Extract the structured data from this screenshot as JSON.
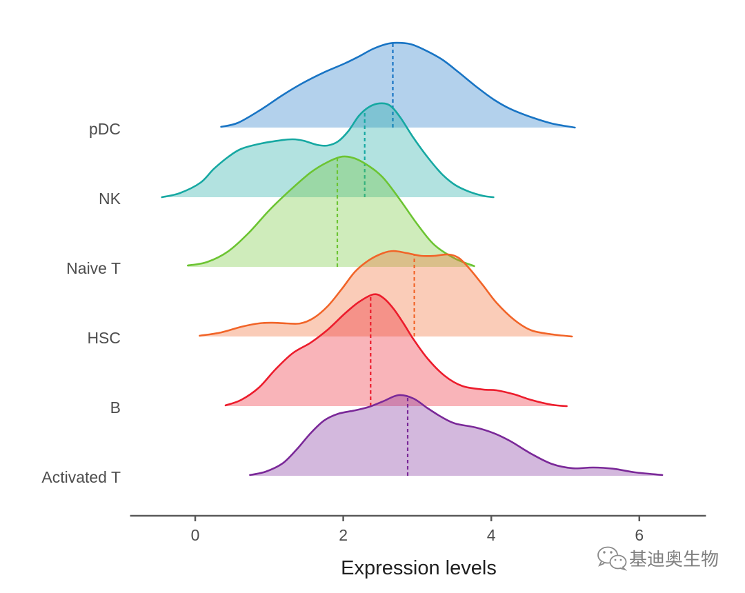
{
  "chart_data": {
    "type": "area",
    "variant": "ridgeline",
    "title": "",
    "xlabel": "Expression levels",
    "ylabel": "",
    "xlim": [
      -0.88,
      6.9
    ],
    "xticks": [
      0,
      2,
      4,
      6
    ],
    "grid": false,
    "legend": "none",
    "categories": [
      "pDC",
      "NK",
      "Naive T",
      "HSC",
      "B",
      "Activated T"
    ],
    "series": [
      {
        "name": "pDC",
        "color": "#1874c4",
        "median": 2.67,
        "x": [
          0.35,
          0.58,
          0.9,
          1.18,
          1.46,
          1.74,
          2.02,
          2.21,
          2.4,
          2.58,
          2.72,
          2.91,
          3.09,
          3.33,
          3.56,
          3.79,
          4.03,
          4.26,
          4.54,
          4.82,
          5.13
        ],
        "density": [
          0.004,
          0.025,
          0.096,
          0.168,
          0.232,
          0.286,
          0.332,
          0.368,
          0.407,
          0.432,
          0.439,
          0.432,
          0.404,
          0.354,
          0.286,
          0.214,
          0.146,
          0.096,
          0.054,
          0.021,
          0.0
        ]
      },
      {
        "name": "NK",
        "color": "#16a8a2",
        "median": 2.29,
        "x": [
          -0.45,
          -0.21,
          0.07,
          0.25,
          0.44,
          0.62,
          0.9,
          1.18,
          1.32,
          1.46,
          1.65,
          1.79,
          1.93,
          2.07,
          2.21,
          2.35,
          2.49,
          2.63,
          2.77,
          2.95,
          3.14,
          3.33,
          3.51,
          3.7,
          3.89,
          4.03
        ],
        "density": [
          0.0,
          0.021,
          0.075,
          0.146,
          0.207,
          0.25,
          0.279,
          0.296,
          0.3,
          0.293,
          0.271,
          0.268,
          0.289,
          0.343,
          0.421,
          0.468,
          0.486,
          0.475,
          0.414,
          0.307,
          0.207,
          0.121,
          0.064,
          0.029,
          0.007,
          0.0
        ]
      },
      {
        "name": "Naive T",
        "color": "#6cc432",
        "median": 1.92,
        "x": [
          -0.1,
          0.16,
          0.44,
          0.72,
          1.0,
          1.28,
          1.56,
          1.79,
          1.99,
          2.16,
          2.35,
          2.54,
          2.77,
          3.0,
          3.23,
          3.51,
          3.77
        ],
        "density": [
          0.007,
          0.025,
          0.079,
          0.175,
          0.293,
          0.396,
          0.489,
          0.543,
          0.571,
          0.561,
          0.521,
          0.461,
          0.346,
          0.221,
          0.114,
          0.043,
          0.004
        ]
      },
      {
        "name": "HSC",
        "color": "#f16428",
        "median": 2.96,
        "x": [
          0.06,
          0.35,
          0.62,
          0.86,
          1.04,
          1.23,
          1.42,
          1.6,
          1.79,
          1.98,
          2.16,
          2.35,
          2.54,
          2.68,
          2.86,
          3.05,
          3.23,
          3.42,
          3.56,
          3.7,
          3.89,
          4.07,
          4.31,
          4.54,
          4.82,
          5.09
        ],
        "density": [
          0.004,
          0.021,
          0.05,
          0.068,
          0.071,
          0.068,
          0.068,
          0.096,
          0.157,
          0.246,
          0.336,
          0.396,
          0.432,
          0.443,
          0.432,
          0.418,
          0.418,
          0.425,
          0.407,
          0.354,
          0.264,
          0.175,
          0.086,
          0.032,
          0.011,
          0.0
        ]
      },
      {
        "name": "B",
        "color": "#ec1c2c",
        "median": 2.37,
        "x": [
          0.41,
          0.62,
          0.86,
          1.09,
          1.32,
          1.56,
          1.79,
          2.02,
          2.21,
          2.41,
          2.54,
          2.68,
          2.82,
          2.95,
          3.14,
          3.37,
          3.61,
          3.89,
          4.07,
          4.31,
          4.54,
          4.82,
          5.02
        ],
        "density": [
          0.004,
          0.032,
          0.096,
          0.193,
          0.275,
          0.329,
          0.396,
          0.479,
          0.539,
          0.579,
          0.561,
          0.504,
          0.425,
          0.346,
          0.246,
          0.157,
          0.104,
          0.086,
          0.082,
          0.061,
          0.032,
          0.007,
          0.0
        ]
      },
      {
        "name": "Activated T",
        "color": "#7a2898",
        "median": 2.87,
        "x": [
          0.74,
          0.95,
          1.18,
          1.37,
          1.56,
          1.74,
          1.93,
          2.16,
          2.35,
          2.54,
          2.75,
          2.95,
          3.14,
          3.33,
          3.51,
          3.79,
          4.03,
          4.26,
          4.54,
          4.82,
          5.1,
          5.38,
          5.66,
          5.94,
          6.31
        ],
        "density": [
          0.004,
          0.021,
          0.064,
          0.136,
          0.221,
          0.286,
          0.321,
          0.339,
          0.357,
          0.386,
          0.418,
          0.4,
          0.35,
          0.304,
          0.271,
          0.25,
          0.221,
          0.179,
          0.114,
          0.061,
          0.039,
          0.043,
          0.036,
          0.018,
          0.004
        ]
      }
    ]
  },
  "watermark": {
    "icon": "wechat-icon",
    "text": "基迪奥生物"
  }
}
